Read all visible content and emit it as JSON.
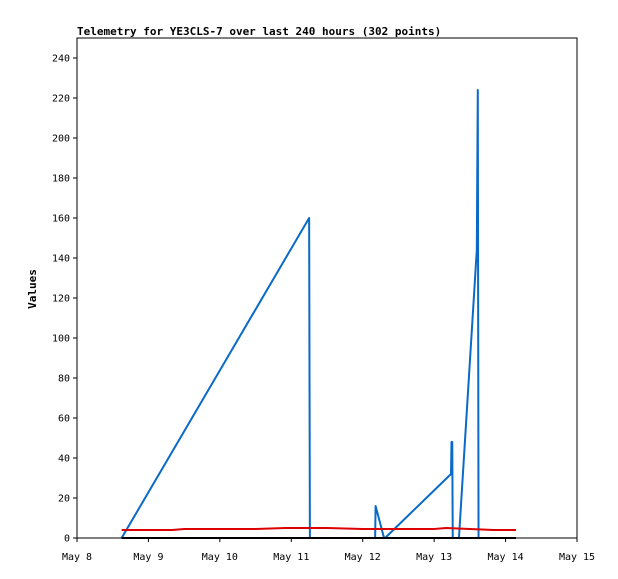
{
  "chart_data": {
    "type": "line",
    "title": "Telemetry for YE3CLS-7 over last 240 hours (302 points)",
    "xlabel": "",
    "ylabel": "Values",
    "x_axis": {
      "type": "date",
      "range": [
        "May 8",
        "May 15"
      ],
      "ticks": [
        "May 8",
        "May 9",
        "May 10",
        "May 11",
        "May 12",
        "May 13",
        "May 14",
        "May 15"
      ]
    },
    "ylim": [
      0,
      250
    ],
    "yticks": [
      0,
      20,
      40,
      60,
      80,
      100,
      120,
      140,
      160,
      180,
      200,
      220,
      240
    ],
    "grid": false,
    "legend": "none",
    "series": [
      {
        "color": "#0a6ac8",
        "points": [
          [
            "May 8 15:00",
            0
          ],
          [
            "May 11 06:00",
            160
          ],
          [
            "May 11 06:15",
            0
          ],
          [
            "May 12 04:10",
            0
          ],
          [
            "May 12 04:20",
            16
          ],
          [
            "May 12 07:10",
            0
          ],
          [
            "May 12 07:30",
            0
          ],
          [
            "May 13 05:40",
            32
          ],
          [
            "May 13 05:50",
            48
          ],
          [
            "May 13 06:05",
            48
          ],
          [
            "May 13 06:15",
            0
          ],
          [
            "May 13 08:20",
            0
          ],
          [
            "May 13 14:20",
            144
          ],
          [
            "May 13 14:40",
            224
          ],
          [
            "May 13 14:55",
            0
          ]
        ]
      },
      {
        "color": "#dd0000",
        "points": [
          [
            "May 8 15:00",
            4
          ],
          [
            "May 9 08:00",
            4
          ],
          [
            "May 9 12:00",
            4.5
          ],
          [
            "May 10 12:00",
            4.5
          ],
          [
            "May 10 22:00",
            5
          ],
          [
            "May 11 12:00",
            5
          ],
          [
            "May 12 00:00",
            4.5
          ],
          [
            "May 12 12:00",
            4.5
          ],
          [
            "May 13 00:00",
            4.5
          ],
          [
            "May 13 04:00",
            5
          ],
          [
            "May 13 12:00",
            4.5
          ],
          [
            "May 13 20:00",
            4
          ],
          [
            "May 14 03:30",
            4
          ]
        ]
      },
      {
        "color": "#000000",
        "points": [
          [
            "May 8 15:00",
            0
          ],
          [
            "May 14 03:30",
            0
          ]
        ]
      }
    ]
  }
}
